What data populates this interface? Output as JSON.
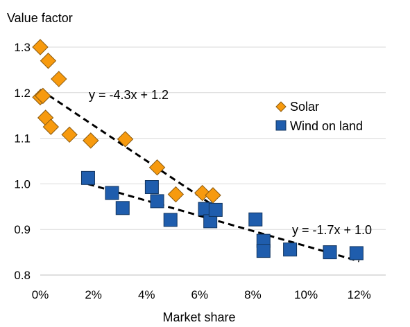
{
  "chart_data": {
    "type": "scatter",
    "xlabel": "Market share",
    "ylabel": "Value factor",
    "xlim": [
      0,
      0.13
    ],
    "ylim": [
      0.8,
      1.3
    ],
    "x_ticks": [
      0,
      0.02,
      0.04,
      0.06,
      0.08,
      0.1,
      0.12
    ],
    "x_tick_labels": [
      "0%",
      "2%",
      "4%",
      "6%",
      "8%",
      "10%",
      "12%"
    ],
    "y_ticks": [
      0.8,
      0.9,
      1.0,
      1.1,
      1.2,
      1.3
    ],
    "y_tick_labels": [
      "0.8",
      "0.9",
      "1.0",
      "1.1",
      "1.2",
      "1.3"
    ],
    "grid": "horizontal",
    "legend_position": "right",
    "series": [
      {
        "name": "Solar",
        "marker": "diamond",
        "color": "#F79A0E",
        "points": [
          {
            "x": 0.0,
            "y": 1.3
          },
          {
            "x": 0.003,
            "y": 1.27
          },
          {
            "x": 0.007,
            "y": 1.23
          },
          {
            "x": 0.0,
            "y": 1.19
          },
          {
            "x": 0.001,
            "y": 1.193
          },
          {
            "x": 0.002,
            "y": 1.145
          },
          {
            "x": 0.004,
            "y": 1.125
          },
          {
            "x": 0.011,
            "y": 1.108
          },
          {
            "x": 0.019,
            "y": 1.095
          },
          {
            "x": 0.032,
            "y": 1.098
          },
          {
            "x": 0.044,
            "y": 1.036
          },
          {
            "x": 0.051,
            "y": 0.977
          },
          {
            "x": 0.061,
            "y": 0.98
          },
          {
            "x": 0.065,
            "y": 0.975
          }
        ],
        "trendline": {
          "label": "y = -4.3x + 1.2",
          "x_range": [
            0.0,
            0.066
          ]
        }
      },
      {
        "name": "Wind on land",
        "marker": "square",
        "color": "#1F5DAD",
        "points": [
          {
            "x": 0.018,
            "y": 1.013
          },
          {
            "x": 0.027,
            "y": 0.98
          },
          {
            "x": 0.031,
            "y": 0.947
          },
          {
            "x": 0.042,
            "y": 0.993
          },
          {
            "x": 0.044,
            "y": 0.962
          },
          {
            "x": 0.049,
            "y": 0.921
          },
          {
            "x": 0.062,
            "y": 0.945
          },
          {
            "x": 0.064,
            "y": 0.918
          },
          {
            "x": 0.066,
            "y": 0.943
          },
          {
            "x": 0.081,
            "y": 0.922
          },
          {
            "x": 0.084,
            "y": 0.875
          },
          {
            "x": 0.084,
            "y": 0.853
          },
          {
            "x": 0.094,
            "y": 0.856
          },
          {
            "x": 0.109,
            "y": 0.85
          },
          {
            "x": 0.119,
            "y": 0.848
          }
        ],
        "trendline": {
          "label": "y = -1.7x + 1.0",
          "x_range": [
            0.018,
            0.12
          ]
        }
      }
    ]
  }
}
